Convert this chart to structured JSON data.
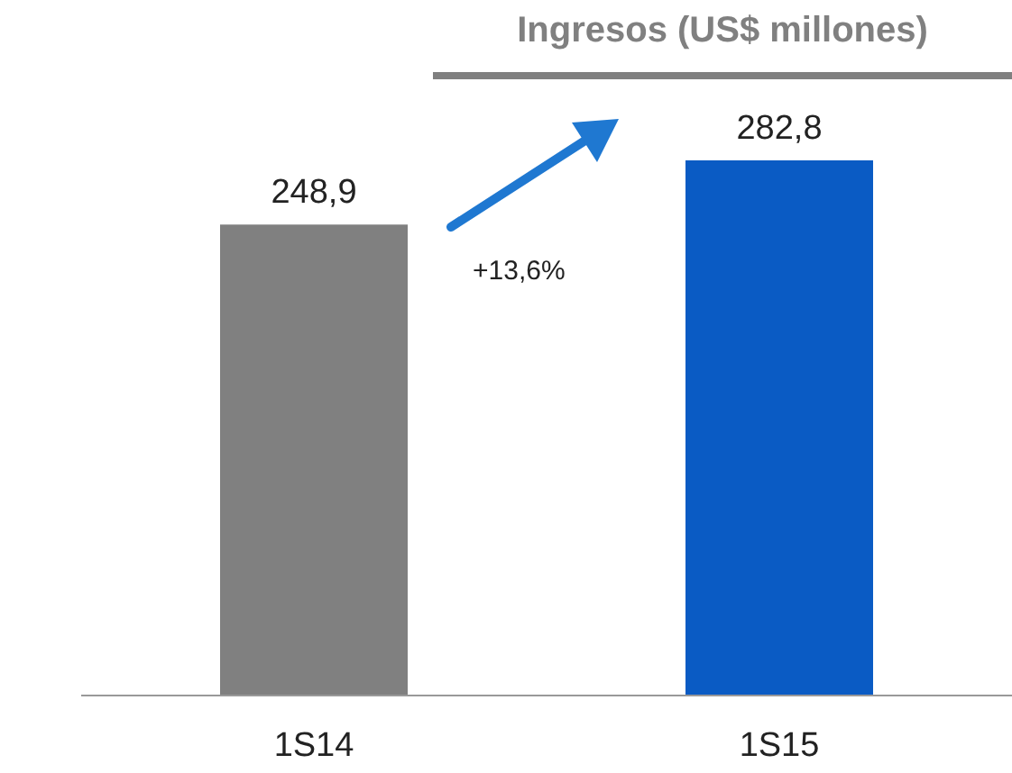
{
  "chart_data": {
    "type": "bar",
    "title": "Ingresos (US$ millones)",
    "categories": [
      "1S14",
      "1S15"
    ],
    "values": [
      248.9,
      282.8
    ],
    "colors": [
      "#808080",
      "#0a5bc4"
    ],
    "value_labels": [
      "248,9",
      "282,8"
    ],
    "annotations": [
      "+13,6%"
    ]
  }
}
